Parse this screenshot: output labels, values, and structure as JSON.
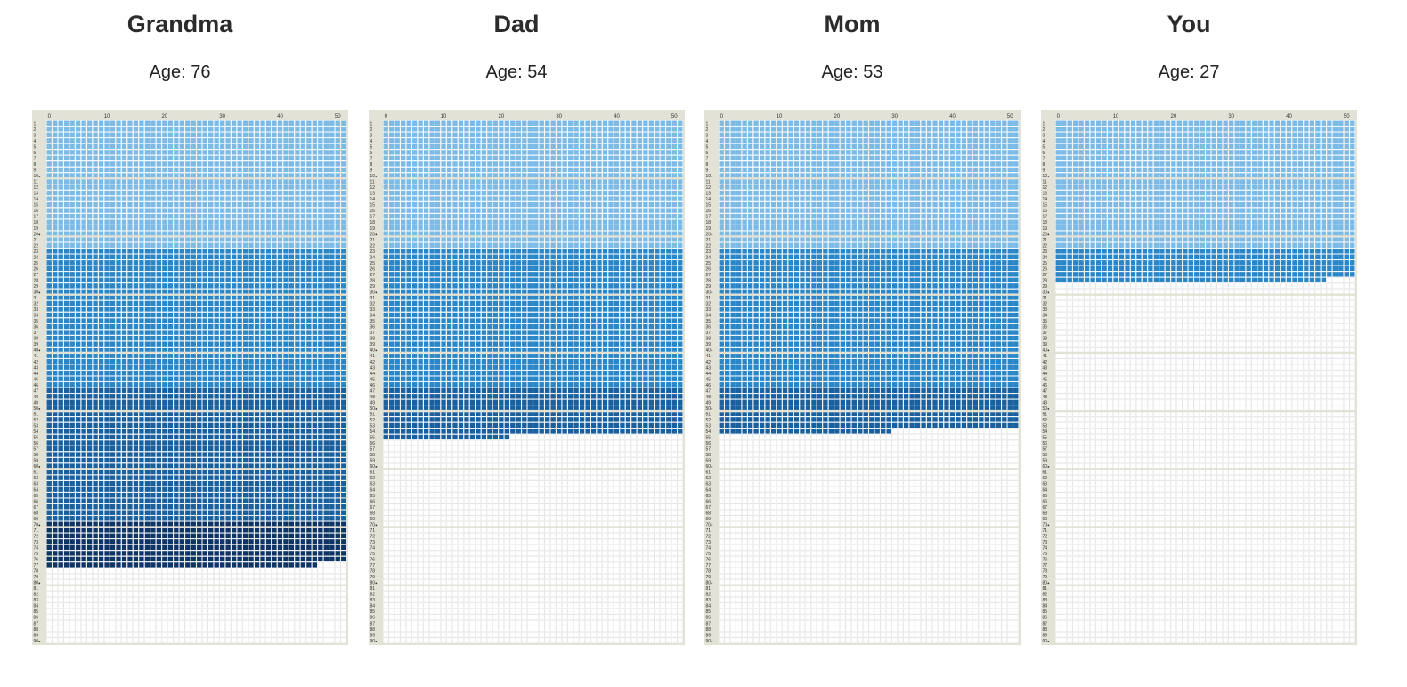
{
  "chart_data": {
    "type": "heatmap",
    "x_ticks": [
      0,
      10,
      20,
      30,
      40,
      50
    ],
    "weeks_per_year": 52,
    "years_total": 90,
    "year_row_labels": [
      "1",
      "2",
      "3",
      "4",
      "5",
      "6",
      "7",
      "8",
      "9",
      "10",
      "11",
      "12",
      "13",
      "14",
      "15",
      "16",
      "17",
      "18",
      "19",
      "20",
      "21",
      "22",
      "23",
      "24",
      "25",
      "26",
      "27",
      "28",
      "29",
      "30",
      "31",
      "32",
      "33",
      "34",
      "35",
      "36",
      "37",
      "38",
      "39",
      "40",
      "41",
      "42",
      "43",
      "44",
      "45",
      "46",
      "47",
      "48",
      "49",
      "50",
      "51",
      "52",
      "53",
      "54",
      "55",
      "56",
      "57",
      "58",
      "59",
      "60",
      "61",
      "62",
      "63",
      "64",
      "65",
      "66",
      "67",
      "68",
      "69",
      "70",
      "71",
      "72",
      "73",
      "74",
      "75",
      "76",
      "77",
      "78",
      "79",
      "80",
      "81",
      "82",
      "83",
      "84",
      "85",
      "86",
      "87",
      "88",
      "89",
      "90"
    ],
    "decade_marker": "●",
    "colors": {
      "frame": "#e2e2d6",
      "empty": "#ffffff",
      "grid_line": "#dcdcdc",
      "stages": [
        {
          "from_year": 1,
          "to_year": 22,
          "color": "#7dbbe6"
        },
        {
          "from_year": 23,
          "to_year": 46,
          "color": "#2a86c6"
        },
        {
          "from_year": 47,
          "to_year": 69,
          "color": "#1a609e"
        },
        {
          "from_year": 70,
          "to_year": 90,
          "color": "#0f3466"
        }
      ]
    },
    "panels": [
      {
        "title": "Grandma",
        "age_text": "Age: 76",
        "filled_years": 76,
        "extra_weeks": 47
      },
      {
        "title": "Dad",
        "age_text": "Age: 54",
        "filled_years": 54,
        "extra_weeks": 22
      },
      {
        "title": "Mom",
        "age_text": "Age: 53",
        "filled_years": 53,
        "extra_weeks": 30
      },
      {
        "title": "You",
        "age_text": "Age: 27",
        "filled_years": 27,
        "extra_weeks": 47
      }
    ]
  }
}
